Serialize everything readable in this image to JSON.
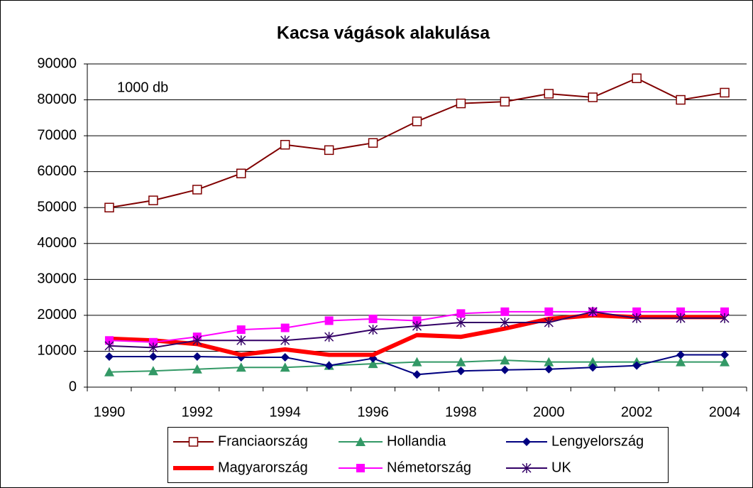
{
  "chart_data": {
    "type": "line",
    "title": "Kacsa vágások alakulása",
    "annotation": "1000 db",
    "categories": [
      "1990",
      null,
      "1992",
      null,
      "1994",
      null,
      "1996",
      null,
      "1998",
      null,
      "2000",
      null,
      "2002",
      null,
      "2004"
    ],
    "ylim": [
      0,
      90000
    ],
    "yticks": [
      0,
      10000,
      20000,
      30000,
      40000,
      50000,
      60000,
      70000,
      80000,
      90000
    ],
    "grid": true,
    "series": [
      {
        "name": "Franciaország",
        "color": "#800000",
        "marker": "square-open",
        "values": [
          50000,
          52000,
          55000,
          59500,
          67500,
          66000,
          68000,
          74000,
          79000,
          79500,
          81700,
          80700,
          86000,
          80000,
          82000
        ]
      },
      {
        "name": "Hollandia",
        "color": "#339966",
        "marker": "triangle",
        "values": [
          4200,
          4500,
          5000,
          5500,
          5500,
          6000,
          6500,
          7000,
          7000,
          7500,
          7000,
          7000,
          7000,
          7000,
          7000
        ]
      },
      {
        "name": "Lengyelország",
        "color": "#000080",
        "marker": "diamond",
        "values": [
          8500,
          8500,
          8500,
          8300,
          8300,
          6000,
          8000,
          3500,
          4500,
          4800,
          5000,
          5500,
          6000,
          9000,
          9000
        ]
      },
      {
        "name": "Magyarország",
        "color": "#ff0000",
        "marker": "none",
        "values": [
          13500,
          13000,
          12000,
          9000,
          10500,
          9000,
          9000,
          14500,
          14000,
          16300,
          19000,
          20000,
          19500,
          19500,
          19500
        ]
      },
      {
        "name": "Németország",
        "color": "#ff00ff",
        "marker": "square",
        "values": [
          13000,
          12500,
          14000,
          16000,
          16500,
          18500,
          19000,
          18500,
          20500,
          21000,
          21000,
          21000,
          21000,
          21000,
          21000
        ]
      },
      {
        "name": "UK",
        "color": "#330066",
        "marker": "asterisk",
        "values": [
          11500,
          11000,
          13000,
          13000,
          13000,
          14000,
          16000,
          17000,
          18000,
          18000,
          18000,
          21000,
          19200,
          19200,
          19200
        ]
      }
    ]
  }
}
